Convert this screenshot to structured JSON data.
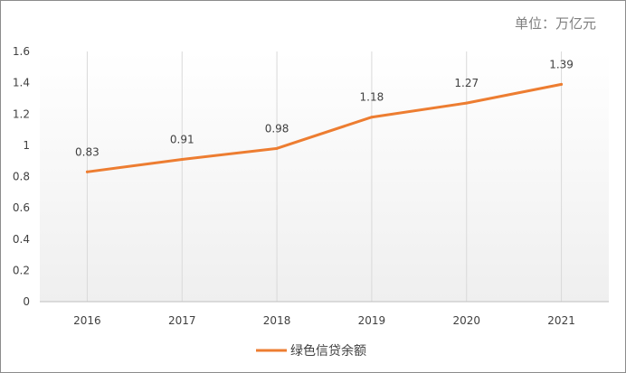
{
  "chart_data": {
    "type": "line",
    "title": "",
    "unit_label": "单位：万亿元",
    "xlabel": "",
    "ylabel": "",
    "categories": [
      "2016",
      "2017",
      "2018",
      "2019",
      "2020",
      "2021"
    ],
    "series": [
      {
        "name": "绿色信贷余额",
        "values": [
          0.83,
          0.91,
          0.98,
          1.18,
          1.27,
          1.39
        ],
        "color": "#ed7d31"
      }
    ],
    "ylim": [
      0,
      1.6
    ],
    "yticks": [
      "0",
      "0.2",
      "0.4",
      "0.6",
      "0.8",
      "1",
      "1.2",
      "1.4",
      "1.6"
    ],
    "grid": "vertical",
    "legend_position": "bottom-center",
    "data_labels": true
  }
}
